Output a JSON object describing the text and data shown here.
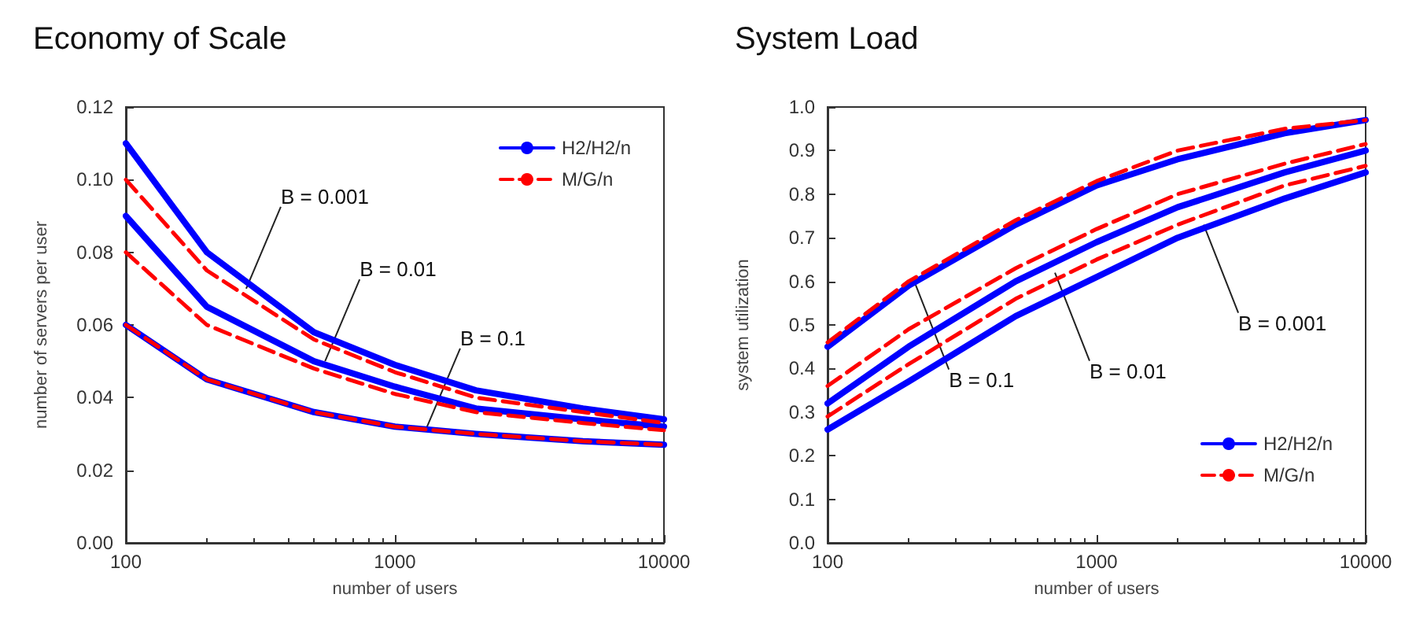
{
  "chart_data": [
    {
      "type": "line",
      "title": "Economy of Scale",
      "xlabel": "number of users",
      "ylabel": "number of servers per user",
      "log": "x",
      "xlim": [
        100,
        10000
      ],
      "xticks": [
        100,
        1000,
        10000
      ],
      "ylim": [
        0,
        0.12
      ],
      "yticks": [
        {
          "value": 0,
          "label": "0.00"
        },
        {
          "value": 0.02,
          "label": "0.02"
        },
        {
          "value": 0.04,
          "label": "0.04"
        },
        {
          "value": 0.06,
          "label": "0.06"
        },
        {
          "value": 0.08,
          "label": "0.08"
        },
        {
          "value": 0.1,
          "label": "0.10"
        },
        {
          "value": 0.12,
          "label": "0.12"
        }
      ],
      "grid": false,
      "legend": "top right",
      "x": [
        100,
        200,
        500,
        1000,
        2000,
        5000,
        10000
      ],
      "series": [
        {
          "name": "H2/H2/n",
          "color": "#0000ff",
          "line_style": "solid",
          "values": [
            0.11,
            0.08,
            0.058,
            0.049,
            0.042,
            0.037,
            0.034
          ]
        },
        {
          "name": "M/G/n",
          "color": "#ff0000",
          "line_style": "dashed",
          "values": [
            0.1,
            0.075,
            0.056,
            0.047,
            0.04,
            0.036,
            0.033
          ]
        },
        {
          "color": "#0000ff",
          "line_style": "solid",
          "values": [
            0.09,
            0.065,
            0.05,
            0.043,
            0.037,
            0.034,
            0.032
          ]
        },
        {
          "color": "#ff0000",
          "line_style": "dashed",
          "values": [
            0.08,
            0.06,
            0.048,
            0.041,
            0.036,
            0.033,
            0.031
          ]
        },
        {
          "color": "#0000ff",
          "line_style": "solid",
          "values": [
            0.06,
            0.045,
            0.036,
            0.032,
            0.03,
            0.028,
            0.027
          ]
        },
        {
          "color": "#ff0000",
          "line_style": "dashed",
          "values": [
            0.06,
            0.045,
            0.036,
            0.032,
            0.03,
            0.028,
            0.027
          ]
        }
      ],
      "annotations": [
        {
          "text": "B = 0.001",
          "x": 280,
          "y": 0.07
        },
        {
          "text": "B = 0.01",
          "x": 550,
          "y": 0.05
        },
        {
          "text": "B = 0.1",
          "x": 1300,
          "y": 0.031
        }
      ]
    },
    {
      "type": "line",
      "title": "System Load",
      "xlabel": "number of users",
      "ylabel": "system utilization",
      "log": "x",
      "xlim": [
        100,
        10000
      ],
      "xticks": [
        100,
        1000,
        10000
      ],
      "ylim": [
        0,
        1
      ],
      "yticks": [
        {
          "value": 0,
          "label": "0.0"
        },
        {
          "value": 0.1,
          "label": "0.1"
        },
        {
          "value": 0.2,
          "label": "0.2"
        },
        {
          "value": 0.3,
          "label": "0.3"
        },
        {
          "value": 0.4,
          "label": "0.4"
        },
        {
          "value": 0.5,
          "label": "0.5"
        },
        {
          "value": 0.6,
          "label": "0.6"
        },
        {
          "value": 0.7,
          "label": "0.7"
        },
        {
          "value": 0.8,
          "label": "0.8"
        },
        {
          "value": 0.9,
          "label": "0.9"
        },
        {
          "value": 1,
          "label": "1.0"
        }
      ],
      "grid": false,
      "legend": "bottom right",
      "x": [
        100,
        200,
        500,
        1000,
        2000,
        5000,
        10000
      ],
      "series": [
        {
          "name": "H2/H2/n",
          "color": "#0000ff",
          "line_style": "solid",
          "values": [
            0.45,
            0.59,
            0.73,
            0.82,
            0.88,
            0.94,
            0.97
          ]
        },
        {
          "name": "M/G/n",
          "color": "#ff0000",
          "line_style": "dashed",
          "values": [
            0.46,
            0.6,
            0.74,
            0.83,
            0.9,
            0.95,
            0.97
          ]
        },
        {
          "color": "#0000ff",
          "line_style": "solid",
          "values": [
            0.32,
            0.45,
            0.6,
            0.69,
            0.77,
            0.85,
            0.9
          ]
        },
        {
          "color": "#ff0000",
          "line_style": "dashed",
          "values": [
            0.36,
            0.49,
            0.63,
            0.72,
            0.8,
            0.87,
            0.915
          ]
        },
        {
          "color": "#0000ff",
          "line_style": "solid",
          "values": [
            0.26,
            0.37,
            0.52,
            0.61,
            0.7,
            0.79,
            0.85
          ]
        },
        {
          "color": "#ff0000",
          "line_style": "dashed",
          "values": [
            0.29,
            0.41,
            0.56,
            0.65,
            0.73,
            0.82,
            0.865
          ]
        }
      ],
      "annotations": [
        {
          "text": "B = 0.1",
          "x": 210,
          "y": 0.6
        },
        {
          "text": "B = 0.01",
          "x": 700,
          "y": 0.62
        },
        {
          "text": "B = 0.001",
          "x": 2500,
          "y": 0.73
        }
      ]
    }
  ]
}
